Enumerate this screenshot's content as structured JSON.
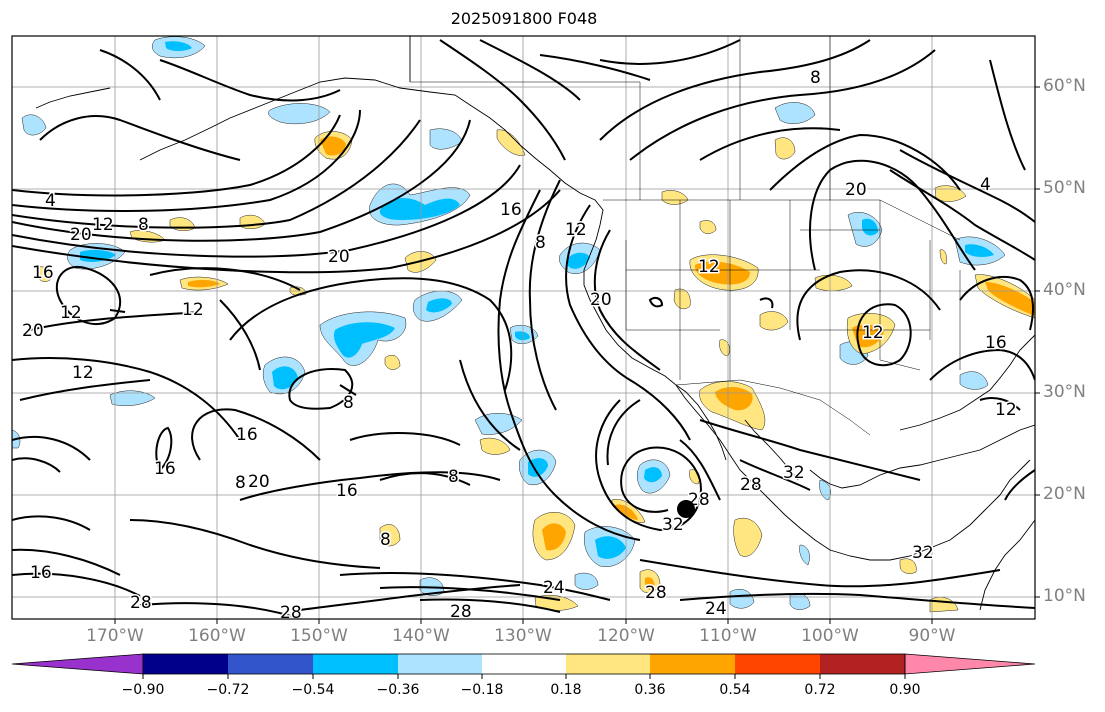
{
  "title": "2025091800 F048",
  "map": {
    "lon_labels": [
      {
        "text": "170°W",
        "lon": -170
      },
      {
        "text": "160°W",
        "lon": -160
      },
      {
        "text": "150°W",
        "lon": -150
      },
      {
        "text": "140°W",
        "lon": -140
      },
      {
        "text": "130°W",
        "lon": -130
      },
      {
        "text": "120°W",
        "lon": -120
      },
      {
        "text": "110°W",
        "lon": -110
      },
      {
        "text": "100°W",
        "lon": -100
      },
      {
        "text": "90°W",
        "lon": -90
      }
    ],
    "lat_labels": [
      {
        "text": "60°N",
        "lat": 60
      },
      {
        "text": "50°N",
        "lat": 50
      },
      {
        "text": "40°N",
        "lat": 40
      },
      {
        "text": "30°N",
        "lat": 30
      },
      {
        "text": "20°N",
        "lat": 20
      },
      {
        "text": "10°N",
        "lat": 10
      }
    ],
    "contour_labels": [
      "4",
      "12",
      "8",
      "20",
      "16",
      "12",
      "20",
      "20",
      "12",
      "16",
      "8",
      "12",
      "8",
      "12",
      "12",
      "20",
      "12",
      "8",
      "16",
      "16",
      "20",
      "8",
      "16",
      "8",
      "24",
      "28",
      "28",
      "28",
      "24",
      "28",
      "32",
      "28",
      "32",
      "32",
      "20",
      "4",
      "16",
      "16",
      "12",
      "28",
      "8"
    ],
    "marker": "storm-center-dot"
  },
  "colorbar": {
    "ticks": [
      "−0.90",
      "−0.72",
      "−0.54",
      "−0.36",
      "−0.18",
      "0.18",
      "0.36",
      "0.54",
      "0.72",
      "0.90"
    ],
    "bins": [
      "#9932cc",
      "#00008b",
      "#3355cc",
      "#00bfff",
      "#aee3ff",
      "#ffffff",
      "#ffe680",
      "#ffa500",
      "#ff4500",
      "#b22222",
      "#ff88aa"
    ],
    "extend": "both"
  }
}
